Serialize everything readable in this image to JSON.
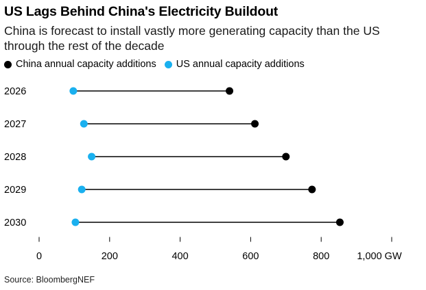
{
  "title": "US Lags Behind China's Electricity Buildout",
  "subtitle": "China is forecast to install vastly more generating capacity than the US through the rest of the decade",
  "source": "Source: BloombergNEF",
  "colors": {
    "china": "#000000",
    "us": "#1ab0ef",
    "connector": "#000000",
    "axis": "#000000"
  },
  "chart_data": {
    "type": "dumbbell",
    "title": "US Lags Behind China's Electricity Buildout",
    "subtitle": "China is forecast to install vastly more generating capacity than the US through the rest of the decade",
    "categories": [
      "2026",
      "2027",
      "2028",
      "2029",
      "2030"
    ],
    "series": [
      {
        "name": "China annual capacity additions",
        "values": [
          540,
          612,
          700,
          774,
          853
        ]
      },
      {
        "name": "US annual capacity additions",
        "values": [
          97,
          127,
          149,
          121,
          103
        ]
      }
    ],
    "xlim": [
      0,
      1000
    ],
    "xticks": [
      0,
      200,
      400,
      600,
      800,
      1000
    ],
    "xtick_labels": [
      "0",
      "200",
      "400",
      "600",
      "800",
      "1,000 GW"
    ],
    "legend_position": "top-left",
    "grid": false
  }
}
